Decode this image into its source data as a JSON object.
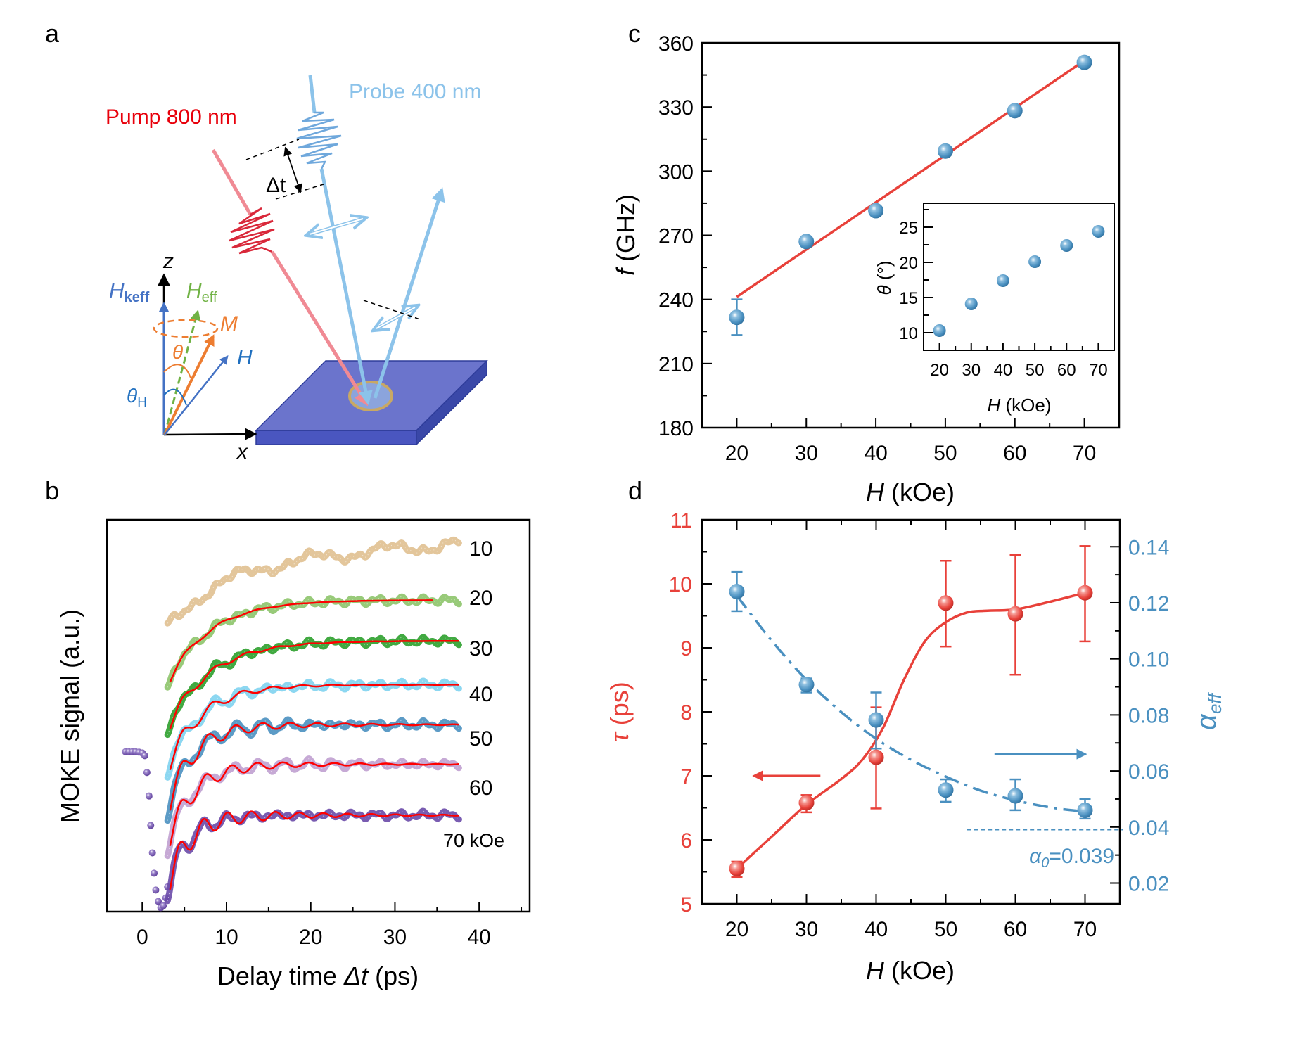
{
  "figure": {
    "panel_labels": [
      "a",
      "b",
      "c",
      "d"
    ]
  },
  "schematic": {
    "pump_label": "Pump 800 nm",
    "probe_label": "Probe 400 nm",
    "delay_label": "Δt",
    "axis_z": "z",
    "axis_x": "x",
    "h_keff_main": "H",
    "h_keff_sub": "keff",
    "h_eff_main": "H",
    "h_eff_sub": "eff",
    "m_label": "M",
    "h_label": "H",
    "theta_label": "θ",
    "theta_h_main": "θ",
    "theta_h_sub": "H",
    "colors": {
      "pump": "#e8000b",
      "pump_beam": "#f08a94",
      "probe": "#8cc3ea",
      "h_keff": "#4472c4",
      "h_eff": "#70b244",
      "m": "#ed7d31",
      "h": "#1f6fbf",
      "sample": "#6b74cc"
    }
  },
  "chart_data": [
    {
      "panel": "b",
      "type": "line",
      "title": "",
      "xlabel_pre": "Delay time ",
      "xlabel_var": "Δt",
      "xlabel_post": " (ps)",
      "ylabel": "MOKE signal (a.u.)",
      "xlim": [
        -4.2,
        46
      ],
      "ylim": [
        0,
        100
      ],
      "xticks": [
        0,
        10,
        20,
        30,
        40
      ],
      "xtick_labels": [
        "0",
        "10",
        "20",
        "30",
        "40"
      ],
      "fit_color": "#ff0000",
      "series": [
        {
          "name": "10",
          "label": "10",
          "color": "#e0c090",
          "t_start": 3.0,
          "t_end": 37.6,
          "start": 72.5,
          "end": 94.0,
          "rise_tau": 6.0,
          "osc_freq_GHz": 0,
          "osc_amp": 1.2,
          "damp_ps": 30,
          "drift": 6.0,
          "fit": false
        },
        {
          "name": "20",
          "label": "20",
          "color": "#8dc46a",
          "t_start": 3.0,
          "t_end": 37.6,
          "start": 58.2,
          "end": 79.5,
          "rise_tau": 5.0,
          "osc_freq_GHz": 232,
          "osc_amp": 1.0,
          "damp_ps": 5.5,
          "drift": 0,
          "fit": true,
          "fit_end": 34.5
        },
        {
          "name": "30",
          "label": "30",
          "color": "#2ca02c",
          "t_start": 3.0,
          "t_end": 37.6,
          "start": 46.7,
          "end": 69.1,
          "rise_tau": 5.0,
          "osc_freq_GHz": 267,
          "osc_amp": 1.6,
          "damp_ps": 6.6,
          "drift": 0,
          "fit": true,
          "fit_end": 37.6
        },
        {
          "name": "40",
          "label": "40",
          "color": "#7fd3f0",
          "t_start": 3.0,
          "t_end": 37.6,
          "start": 36.6,
          "end": 57.9,
          "rise_tau": 4.0,
          "osc_freq_GHz": 281,
          "osc_amp": 2.4,
          "damp_ps": 7.3,
          "drift": 0,
          "fit": true,
          "fit_end": 37.6
        },
        {
          "name": "50",
          "label": "50",
          "color": "#4a90c0",
          "t_start": 3.0,
          "t_end": 37.6,
          "start": 26.2,
          "end": 47.7,
          "rise_tau": 3.0,
          "osc_freq_GHz": 309,
          "osc_amp": 3.0,
          "damp_ps": 9.7,
          "drift": 0,
          "fit": true,
          "fit_end": 37.6
        },
        {
          "name": "60",
          "label": "60",
          "color": "#c0a0d0",
          "t_start": 3.0,
          "t_end": 37.6,
          "start": 17.2,
          "end": 37.6,
          "rise_tau": 3.0,
          "osc_freq_GHz": 328,
          "osc_amp": 3.0,
          "damp_ps": 9.5,
          "drift": 0,
          "fit": true,
          "fit_end": 37.6
        },
        {
          "name": "70 kOe",
          "label": "70 kOe",
          "color": "#6a4aa8",
          "t_start": 3.0,
          "t_end": 37.6,
          "start": 6.3,
          "end": 24.6,
          "rise_tau": 2.5,
          "osc_freq_GHz": 351,
          "osc_amp": 3.6,
          "damp_ps": 9.9,
          "drift": 0,
          "fit": true,
          "fit_end": 37.6
        }
      ],
      "pre_zero": {
        "color": "#6a4aa8",
        "points": [
          [
            -2.0,
            40.8
          ],
          [
            -1.6,
            40.8
          ],
          [
            -1.2,
            40.8
          ],
          [
            -0.8,
            40.8
          ],
          [
            -0.4,
            40.7
          ],
          [
            0.0,
            40.5
          ],
          [
            0.3,
            39.8
          ],
          [
            0.55,
            35.5
          ],
          [
            0.8,
            29.5
          ],
          [
            1.0,
            22.0
          ],
          [
            1.2,
            15.0
          ],
          [
            1.4,
            9.8
          ],
          [
            1.6,
            5.5
          ],
          [
            1.9,
            2.6
          ],
          [
            2.2,
            1.0
          ],
          [
            2.5,
            1.5
          ],
          [
            2.8,
            3.5
          ],
          [
            3.0,
            6.3
          ]
        ]
      }
    },
    {
      "panel": "c",
      "type": "scatter",
      "title": "",
      "xlabel_var": "H",
      "xlabel_post": " (kOe)",
      "ylabel_var": "f",
      "ylabel_post": " (GHz)",
      "xlim": [
        15,
        75
      ],
      "ylim": [
        180,
        360
      ],
      "xticks": [
        20,
        30,
        40,
        50,
        60,
        70
      ],
      "xtick_labels": [
        "20",
        "30",
        "40",
        "50",
        "60",
        "70"
      ],
      "yticks": [
        180,
        210,
        240,
        270,
        300,
        330,
        360
      ],
      "ytick_labels": [
        "180",
        "210",
        "240",
        "270",
        "300",
        "330",
        "360"
      ],
      "marker_color": "#4a90c0",
      "fit_color": "#e8413a",
      "x": [
        20,
        30,
        40,
        50,
        60,
        70
      ],
      "y": [
        231.6,
        267.1,
        281.5,
        309.4,
        328.3,
        350.9
      ],
      "yerr_low": [
        223.3,
        265.5,
        279.8,
        307.8,
        326.6,
        349.0
      ],
      "yerr_high": [
        240.0,
        268.7,
        283.2,
        311.0,
        330.0,
        352.8
      ],
      "fit_line": {
        "x": [
          20,
          70
        ],
        "y": [
          241.2,
          351.7
        ]
      },
      "inset": {
        "type": "scatter",
        "xlabel_var": "H",
        "xlabel_post": " (kOe)",
        "ylabel_var": "θ",
        "ylabel_post": " (°)",
        "xlim": [
          15,
          75
        ],
        "ylim": [
          7.5,
          28.4
        ],
        "xticks": [
          20,
          30,
          40,
          50,
          60,
          70
        ],
        "xtick_labels": [
          "20",
          "30",
          "40",
          "50",
          "60",
          "70"
        ],
        "yticks": [
          10,
          15,
          20,
          25
        ],
        "ytick_labels": [
          "10",
          "15",
          "20",
          "25"
        ],
        "x": [
          20,
          30,
          40,
          50,
          60,
          70
        ],
        "y": [
          10.3,
          14.1,
          17.4,
          20.1,
          22.4,
          24.4
        ]
      }
    },
    {
      "panel": "d",
      "type": "scatter",
      "title": "",
      "xlabel_var": "H",
      "xlabel_post": " (kOe)",
      "xlim": [
        15,
        75
      ],
      "xticks": [
        20,
        30,
        40,
        50,
        60,
        70
      ],
      "xtick_labels": [
        "20",
        "30",
        "40",
        "50",
        "60",
        "70"
      ],
      "left_axis": {
        "label_var": "τ",
        "label_post": " (ps)",
        "color": "#e8413a",
        "ylim": [
          5,
          11
        ],
        "yticks": [
          5,
          6,
          7,
          8,
          9,
          10,
          11
        ],
        "ytick_labels": [
          "5",
          "6",
          "7",
          "8",
          "9",
          "10",
          "11"
        ]
      },
      "right_axis": {
        "label_main": "α",
        "label_sub": "eff",
        "color": "#4a90c0",
        "ylim": [
          0.0126,
          0.1496
        ],
        "yticks": [
          0.02,
          0.04,
          0.06,
          0.08,
          0.1,
          0.12,
          0.14
        ],
        "ytick_labels": [
          "0.02",
          "0.04",
          "0.06",
          "0.08",
          "0.10",
          "0.12",
          "0.14"
        ]
      },
      "series": [
        {
          "name": "tau",
          "axis": "left",
          "color": "#e8413a",
          "x": [
            20,
            30,
            40,
            50,
            60,
            70
          ],
          "y": [
            5.55,
            6.58,
            7.29,
            9.7,
            9.53,
            9.86
          ],
          "yerr_low": [
            5.42,
            6.43,
            6.49,
            9.02,
            8.58,
            9.1
          ],
          "yerr_high": [
            5.66,
            6.7,
            8.07,
            10.36,
            10.45,
            10.59
          ],
          "fit_curve": {
            "x": [
              20,
              25,
              30,
              35,
              38,
              41,
              44,
              47,
              50,
              53,
              56,
              60,
              65,
              70
            ],
            "y": [
              5.55,
              6.05,
              6.55,
              6.95,
              7.25,
              7.75,
              8.5,
              9.1,
              9.4,
              9.55,
              9.58,
              9.6,
              9.72,
              9.86
            ]
          }
        },
        {
          "name": "alpha_eff",
          "axis": "right",
          "color": "#4a90c0",
          "x": [
            20,
            30,
            40,
            50,
            60,
            70
          ],
          "y": [
            0.124,
            0.0908,
            0.0782,
            0.0532,
            0.0511,
            0.046
          ],
          "yerr_low": [
            0.117,
            0.088,
            0.068,
            0.049,
            0.046,
            0.043
          ],
          "yerr_high": [
            0.131,
            0.093,
            0.088,
            0.057,
            0.057,
            0.05
          ],
          "fit_curve": {
            "x": [
              20,
              25,
              30,
              35,
              40,
              45,
              50,
              55,
              60,
              65,
              70
            ],
            "y": [
              0.1225,
              0.1065,
              0.0925,
              0.081,
              0.0715,
              0.064,
              0.058,
              0.053,
              0.0495,
              0.047,
              0.0455
            ]
          }
        }
      ],
      "alpha0": {
        "value": 0.039,
        "label_main": "α",
        "label_sub": "0",
        "label_post": "=0.039",
        "x_from": 53
      },
      "arrows": [
        {
          "name": "left-axis-arrow",
          "direction": "left",
          "y_value": 7.0,
          "axis": "left",
          "x_from": 32,
          "x_to": 22.5
        },
        {
          "name": "right-axis-arrow",
          "direction": "right",
          "y_value": 0.066,
          "axis": "right",
          "x_from": 57,
          "x_to": 70
        }
      ]
    }
  ]
}
